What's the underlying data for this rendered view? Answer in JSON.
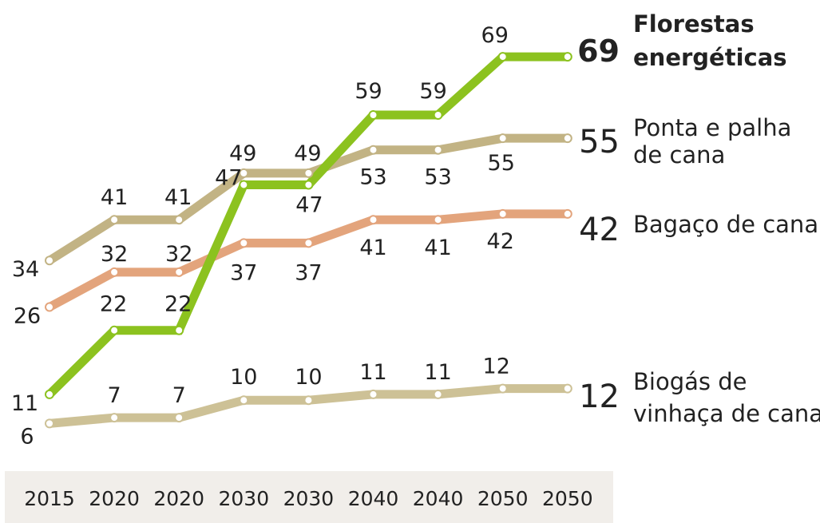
{
  "chart_data": {
    "type": "line",
    "x": [
      "2015",
      "2020",
      "2020",
      "2030",
      "2030",
      "2040",
      "2040",
      "2050",
      "2050"
    ],
    "colors": {
      "axis_band": "#f1eeea"
    },
    "series": [
      {
        "name": "Florestas energéticas",
        "color": "#8cc21f",
        "emphasis": true,
        "end_value": "69",
        "label_lines": [
          "Florestas",
          "energéticas"
        ],
        "values": [
          11,
          22,
          22,
          47,
          47,
          59,
          59,
          69,
          69
        ],
        "value_labels": [
          "11",
          "22",
          "22",
          "47",
          "47",
          "59",
          "59",
          "69",
          ""
        ]
      },
      {
        "name": "Ponta e palha de cana",
        "color": "#c2b384",
        "emphasis": false,
        "end_value": "55",
        "label_lines": [
          "Ponta e palha",
          "de cana"
        ],
        "values": [
          34,
          41,
          41,
          49,
          49,
          53,
          53,
          55,
          55
        ],
        "value_labels": [
          "34",
          "41",
          "41",
          "49",
          "49",
          "53",
          "53",
          "55",
          ""
        ]
      },
      {
        "name": "Bagaço de cana",
        "color": "#e3a47c",
        "emphasis": false,
        "end_value": "42",
        "label_lines": [
          "Bagaço de cana"
        ],
        "values": [
          26,
          32,
          32,
          37,
          37,
          41,
          41,
          42,
          42
        ],
        "value_labels": [
          "26",
          "32",
          "32",
          "37",
          "37",
          "41",
          "41",
          "42",
          ""
        ]
      },
      {
        "name": "Biogás de vinhaça de cana",
        "color": "#cdc196",
        "emphasis": false,
        "end_value": "12",
        "label_lines": [
          "Biogás de",
          "vinhaça de cana"
        ],
        "values": [
          6,
          7,
          7,
          10,
          10,
          11,
          11,
          12,
          12
        ],
        "value_labels": [
          "6",
          "7",
          "7",
          "10",
          "10",
          "11",
          "11",
          "12",
          ""
        ]
      }
    ]
  }
}
